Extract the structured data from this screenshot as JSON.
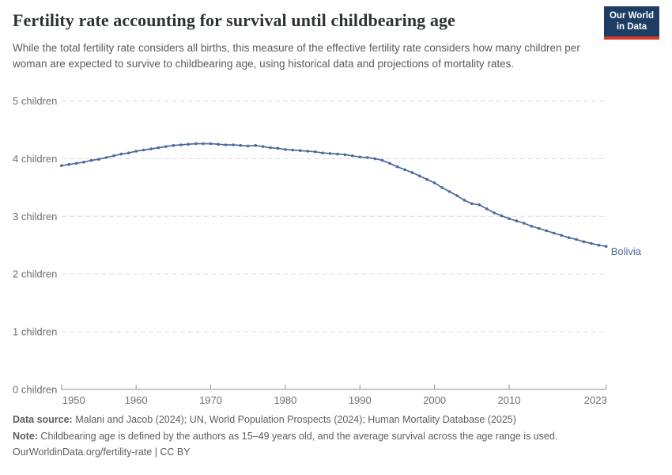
{
  "header": {
    "title": "Fertility rate accounting for survival until childbearing age",
    "subtitle": "While the total fertility rate considers all births, this measure of the effective fertility rate considers how many children per woman are expected to survive to childbearing age, using historical data and projections of mortality rates."
  },
  "logo": {
    "line1": "Our World",
    "line2": "in Data"
  },
  "chart_data": {
    "type": "line",
    "title": "Fertility rate accounting for survival until childbearing age",
    "xlabel": "",
    "ylabel": "children",
    "xlim": [
      1950,
      2023
    ],
    "ylim": [
      0,
      5
    ],
    "grid": "horizontal-dashed",
    "legend_position": "end-of-line-label",
    "x_ticks": [
      1950,
      1960,
      1970,
      1980,
      1990,
      2000,
      2010,
      2023
    ],
    "y_ticks": [
      {
        "value": 0,
        "label": "0 children"
      },
      {
        "value": 1,
        "label": "1 children"
      },
      {
        "value": 2,
        "label": "2 children"
      },
      {
        "value": 3,
        "label": "3 children"
      },
      {
        "value": 4,
        "label": "4 children"
      },
      {
        "value": 5,
        "label": "5 children"
      }
    ],
    "series": [
      {
        "name": "Bolivia",
        "end_label": "Bolivia",
        "years": [
          1950,
          1951,
          1952,
          1953,
          1954,
          1955,
          1956,
          1957,
          1958,
          1959,
          1960,
          1961,
          1962,
          1963,
          1964,
          1965,
          1966,
          1967,
          1968,
          1969,
          1970,
          1971,
          1972,
          1973,
          1974,
          1975,
          1976,
          1977,
          1978,
          1979,
          1980,
          1981,
          1982,
          1983,
          1984,
          1985,
          1986,
          1987,
          1988,
          1989,
          1990,
          1991,
          1992,
          1993,
          1994,
          1995,
          1996,
          1997,
          1998,
          1999,
          2000,
          2001,
          2002,
          2003,
          2004,
          2005,
          2006,
          2007,
          2008,
          2009,
          2010,
          2011,
          2012,
          2013,
          2014,
          2015,
          2016,
          2017,
          2018,
          2019,
          2020,
          2021,
          2022,
          2023
        ],
        "values": [
          3.88,
          3.9,
          3.92,
          3.94,
          3.97,
          3.99,
          4.02,
          4.05,
          4.08,
          4.1,
          4.13,
          4.15,
          4.17,
          4.19,
          4.21,
          4.23,
          4.24,
          4.25,
          4.26,
          4.26,
          4.26,
          4.25,
          4.24,
          4.24,
          4.23,
          4.22,
          4.23,
          4.21,
          4.19,
          4.18,
          4.16,
          4.15,
          4.14,
          4.13,
          4.12,
          4.1,
          4.09,
          4.08,
          4.07,
          4.05,
          4.03,
          4.02,
          4.0,
          3.97,
          3.92,
          3.86,
          3.81,
          3.76,
          3.7,
          3.64,
          3.58,
          3.5,
          3.43,
          3.36,
          3.28,
          3.22,
          3.2,
          3.13,
          3.06,
          3.01,
          2.96,
          2.92,
          2.88,
          2.83,
          2.79,
          2.75,
          2.71,
          2.67,
          2.63,
          2.6,
          2.56,
          2.53,
          2.5,
          2.48
        ]
      }
    ]
  },
  "footer": {
    "datasource_label": "Data source:",
    "datasource_text": " Malani and Jacob (2024); UN, World Population Prospects (2024); Human Mortality Database (2025)",
    "note_label": "Note:",
    "note_text": " Childbearing age is defined by the authors as 15–49 years old, and the average survival across the age range is used.",
    "license": "OurWorldinData.org/fertility-rate | CC BY"
  },
  "colors": {
    "line": "#4C6A9C",
    "series_label": "#4C6A9C",
    "gridline": "#dcdcdc",
    "axis": "#8f8f8f",
    "tick_label": "#6e6e6e",
    "logo_navy": "#1d3d63",
    "logo_red": "#d8352b"
  }
}
